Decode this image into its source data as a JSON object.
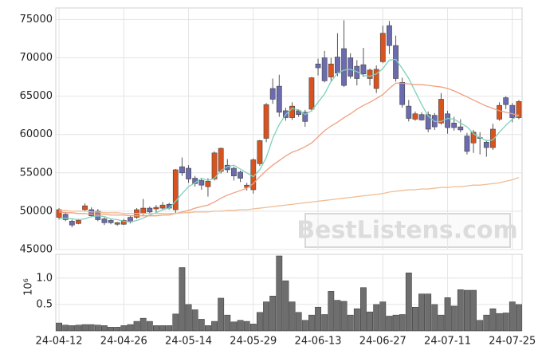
{
  "chart_data": [
    {
      "type": "candlestick",
      "open": [
        49200,
        49600,
        48700,
        48400,
        50200,
        50200,
        50000,
        49000,
        48800,
        48300,
        48300,
        49200,
        49200,
        49700,
        50400,
        50300,
        50400,
        50900,
        50200,
        55800,
        55600,
        54300,
        54000,
        53200,
        54200,
        55200,
        56000,
        55600,
        55100,
        53100,
        52800,
        56200,
        59500,
        66000,
        66300,
        63100,
        62200,
        63100,
        62900,
        63300,
        69200,
        70000,
        67500,
        70100,
        71200,
        70000,
        68900,
        69100,
        67300,
        66000,
        69500,
        74200,
        71600,
        66800,
        63700,
        62000,
        62600,
        62600,
        62500,
        61500,
        62700,
        61500,
        61000,
        59800,
        58900,
        59600,
        59000,
        58300,
        62000,
        64800,
        63800,
        62200
      ],
      "high": [
        50400,
        49900,
        48900,
        49000,
        51000,
        50500,
        50300,
        49200,
        49000,
        48600,
        49000,
        49400,
        50400,
        51600,
        50600,
        50800,
        51200,
        51100,
        55500,
        57000,
        56000,
        54600,
        54300,
        54300,
        57800,
        58300,
        56800,
        55800,
        55300,
        53700,
        56900,
        59300,
        64100,
        67300,
        67800,
        63500,
        64200,
        63300,
        63200,
        67500,
        69900,
        70900,
        70000,
        73200,
        74900,
        70600,
        69700,
        71300,
        68600,
        69000,
        74200,
        74800,
        72900,
        67400,
        64500,
        63000,
        62900,
        63000,
        62800,
        65400,
        63100,
        62300,
        62000,
        60200,
        60600,
        60300,
        59300,
        61400,
        64200,
        65000,
        64100,
        64500
      ],
      "low": [
        48900,
        48700,
        47900,
        48300,
        50000,
        49200,
        48700,
        48200,
        48300,
        48100,
        48200,
        48400,
        49000,
        49500,
        49700,
        49800,
        50200,
        50200,
        49700,
        54600,
        53700,
        53200,
        52800,
        51900,
        54000,
        54900,
        55000,
        54000,
        53800,
        52700,
        52300,
        55900,
        59000,
        64000,
        62300,
        61800,
        61900,
        62300,
        61000,
        63000,
        67700,
        66800,
        67000,
        67600,
        66200,
        67300,
        66400,
        67500,
        66400,
        65400,
        69300,
        70500,
        66900,
        63500,
        61700,
        61800,
        61800,
        60300,
        60600,
        61300,
        60100,
        60500,
        60300,
        57400,
        57600,
        57400,
        57100,
        58000,
        61800,
        63300,
        61600,
        62000
      ],
      "close": [
        50200,
        48900,
        48200,
        48800,
        50700,
        49400,
        48900,
        48500,
        48500,
        48500,
        48800,
        48600,
        50200,
        50400,
        49900,
        50500,
        50800,
        50400,
        55400,
        55000,
        54200,
        53600,
        53400,
        53900,
        57600,
        58200,
        55400,
        54600,
        54300,
        53400,
        56700,
        59200,
        63900,
        64600,
        62900,
        62200,
        63700,
        62600,
        61700,
        67400,
        68700,
        67000,
        69200,
        68000,
        66400,
        67600,
        67300,
        67900,
        68400,
        68500,
        73200,
        71600,
        67300,
        63900,
        62100,
        62700,
        61900,
        60700,
        61000,
        64600,
        60900,
        60900,
        60600,
        57800,
        60300,
        59500,
        58300,
        60700,
        63800,
        63900,
        62200,
        64300
      ],
      "up_color": "#d9531e",
      "down_color": "#6b6bb0",
      "series": [
        {
          "color": "#7fd1b9",
          "values": [
            49000,
            49100,
            49000,
            48900,
            49000,
            49300,
            49400,
            49300,
            49000,
            48900,
            48700,
            48600,
            48800,
            49100,
            49500,
            49800,
            50200,
            50400,
            51300,
            52300,
            53200,
            53700,
            54300,
            54000,
            54300,
            55300,
            55800,
            56000,
            55500,
            55000,
            54500,
            55400,
            57000,
            59500,
            61300,
            62600,
            63400,
            63200,
            62600,
            63100,
            64200,
            65300,
            66900,
            68000,
            68400,
            68500,
            68200,
            67700,
            67600,
            67900,
            68600,
            69700,
            69800,
            68600,
            67300,
            65600,
            63900,
            62400,
            61700,
            61700,
            62100,
            62000,
            61500,
            61000,
            60100,
            59600,
            59200,
            59300,
            60300,
            61200,
            62000,
            62500
          ]
        },
        {
          "color": "#f0a080",
          "values": [
            49900,
            49800,
            49800,
            49700,
            49700,
            49600,
            49600,
            49600,
            49500,
            49500,
            49500,
            49400,
            49400,
            49400,
            49400,
            49400,
            49500,
            49500,
            49700,
            49900,
            50100,
            50400,
            50600,
            50800,
            51200,
            51700,
            52100,
            52400,
            52700,
            53000,
            53600,
            54500,
            55300,
            56000,
            56600,
            57200,
            57700,
            58000,
            58400,
            58900,
            59700,
            60500,
            61100,
            61600,
            62200,
            62700,
            63300,
            63800,
            64200,
            64700,
            65200,
            66000,
            66700,
            66700,
            66600,
            66500,
            66500,
            66400,
            66300,
            66200,
            66000,
            65700,
            65300,
            64900,
            64500,
            64100,
            63700,
            63400,
            63100,
            62900,
            62700,
            62500
          ]
        },
        {
          "color": "#f0bc94",
          "values": [
            50100,
            50100,
            50000,
            50000,
            50000,
            49900,
            49900,
            49800,
            49800,
            49800,
            49700,
            49700,
            49700,
            49700,
            49700,
            49700,
            49700,
            49700,
            49700,
            49800,
            49800,
            49900,
            49900,
            49900,
            50000,
            50000,
            50100,
            50100,
            50200,
            50200,
            50300,
            50400,
            50500,
            50600,
            50700,
            50800,
            50900,
            51000,
            51100,
            51200,
            51300,
            51400,
            51500,
            51600,
            51700,
            51800,
            51900,
            52000,
            52100,
            52200,
            52300,
            52500,
            52600,
            52700,
            52800,
            52800,
            52900,
            52900,
            53000,
            53100,
            53100,
            53200,
            53200,
            53300,
            53400,
            53400,
            53500,
            53600,
            53700,
            53900,
            54100,
            54400
          ]
        }
      ],
      "ylim": [
        45000,
        76500
      ],
      "yticks": [
        45000,
        50000,
        55000,
        60000,
        65000,
        70000,
        75000
      ],
      "grid": true,
      "watermark": "BestListens.com"
    },
    {
      "type": "bar",
      "categories": [
        "24-04-12",
        null,
        null,
        null,
        null,
        null,
        null,
        null,
        null,
        null,
        "24-04-26",
        null,
        null,
        null,
        null,
        null,
        null,
        null,
        null,
        null,
        "24-05-14",
        null,
        null,
        null,
        null,
        null,
        null,
        null,
        null,
        null,
        "24-05-29",
        null,
        null,
        null,
        null,
        null,
        null,
        null,
        null,
        null,
        "24-06-13",
        null,
        null,
        null,
        null,
        null,
        null,
        null,
        null,
        null,
        "24-06-27",
        null,
        null,
        null,
        null,
        null,
        null,
        null,
        null,
        null,
        "24-07-11",
        null,
        null,
        null,
        null,
        null,
        null,
        null,
        null,
        null,
        "24-07-25",
        null
      ],
      "values": [
        0.15,
        0.11,
        0.1,
        0.11,
        0.12,
        0.12,
        0.11,
        0.1,
        0.07,
        0.07,
        0.1,
        0.12,
        0.18,
        0.24,
        0.18,
        0.1,
        0.1,
        0.1,
        0.32,
        1.2,
        0.5,
        0.4,
        0.22,
        0.1,
        0.18,
        0.62,
        0.3,
        0.17,
        0.2,
        0.18,
        0.13,
        0.35,
        0.55,
        0.66,
        1.42,
        0.95,
        0.55,
        0.35,
        0.2,
        0.3,
        0.45,
        0.31,
        0.75,
        0.58,
        0.56,
        0.3,
        0.42,
        0.82,
        0.36,
        0.5,
        0.55,
        0.28,
        0.3,
        0.31,
        1.1,
        0.45,
        0.7,
        0.7,
        0.5,
        0.3,
        0.63,
        0.47,
        0.78,
        0.77,
        0.77,
        0.2,
        0.3,
        0.42,
        0.33,
        0.34,
        0.55,
        0.5
      ],
      "color": "#6e6e6e",
      "ylabel": "10⁶",
      "ylim": [
        0,
        1.45
      ],
      "yticks": [
        0.5,
        {
          "value": 1,
          "label": "1.0"
        }
      ],
      "grid": true
    }
  ]
}
